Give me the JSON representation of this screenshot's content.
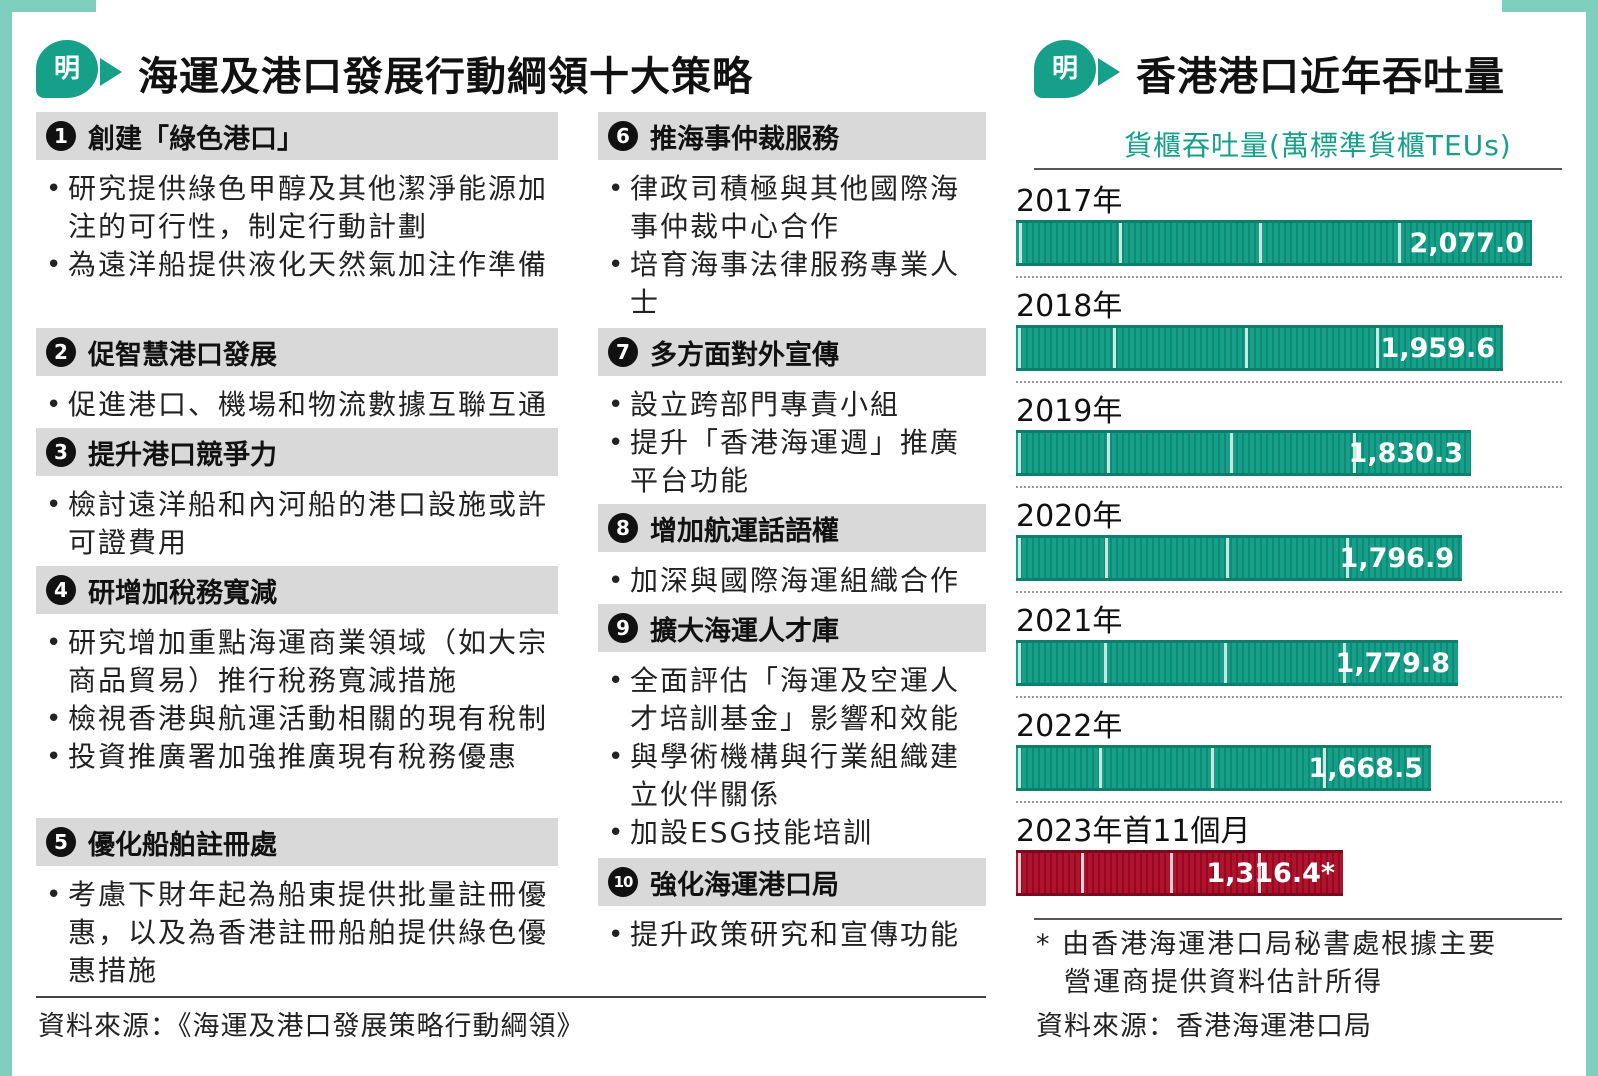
{
  "left_panel": {
    "logo_text": "明",
    "title": "海運及港口發展行動綱領十大策略",
    "strategies": [
      {
        "num": "1",
        "title": "創建「綠色港口」",
        "bullets": [
          "研究提供綠色甲醇及其他潔淨能源加注的可行性，制定行動計劃",
          "為遠洋船提供液化天然氣加注作準備"
        ]
      },
      {
        "num": "2",
        "title": "促智慧港口發展",
        "bullets": [
          "促進港口、機場和物流數據互聯互通"
        ]
      },
      {
        "num": "3",
        "title": "提升港口競爭力",
        "bullets": [
          "檢討遠洋船和內河船的港口設施或許可證費用"
        ]
      },
      {
        "num": "4",
        "title": "研增加稅務寬減",
        "bullets": [
          "研究增加重點海運商業領域（如大宗商品貿易）推行稅務寬減措施",
          "檢視香港與航運活動相關的現有稅制",
          "投資推廣署加強推廣現有稅務優惠"
        ]
      },
      {
        "num": "5",
        "title": "優化船舶註冊處",
        "bullets": [
          "考慮下財年起為船東提供批量註冊優惠，以及為香港註冊船舶提供綠色優惠措施"
        ]
      },
      {
        "num": "6",
        "title": "推海事仲裁服務",
        "bullets": [
          "律政司積極與其他國際海事仲裁中心合作",
          "培育海事法律服務專業人士"
        ]
      },
      {
        "num": "7",
        "title": "多方面對外宣傳",
        "bullets": [
          "設立跨部門專責小組",
          "提升「香港海運週」推廣平台功能"
        ]
      },
      {
        "num": "8",
        "title": "增加航運話語權",
        "bullets": [
          "加深與國際海運組織合作"
        ]
      },
      {
        "num": "9",
        "title": "擴大海運人才庫",
        "bullets": [
          "全面評估「海運及空運人才培訓基金」影響和效能",
          "與學術機構與行業組織建立伙伴關係",
          "加設ESG技能培訓"
        ]
      },
      {
        "num": "10",
        "title": "強化海運港口局",
        "bullets": [
          "提升政策研究和宣傳功能"
        ]
      }
    ],
    "source": "資料來源：《海運及港口發展策略行動綱領》"
  },
  "right_panel": {
    "logo_text": "明",
    "title": "香港港口近年吞吐量",
    "unit_label": "貨櫃吞吐量(萬標準貨櫃TEUs)",
    "footnote_lines": [
      "* 由香港海運港口局秘書處根據主要",
      "營運商提供資料估計所得"
    ],
    "source": "資料來源：香港海運港口局"
  },
  "chart_data": {
    "type": "bar",
    "orientation": "horizontal",
    "title": "香港港口近年吞吐量",
    "unit": "貨櫃吞吐量(萬標準貨櫃TEUs)",
    "categories": [
      "2017年",
      "2018年",
      "2019年",
      "2020年",
      "2021年",
      "2022年",
      "2023年首11個月"
    ],
    "values": [
      2077.0,
      1959.6,
      1830.3,
      1796.9,
      1779.8,
      1668.5,
      1316.4
    ],
    "value_labels": [
      "2,077.0",
      "1,959.6",
      "1,830.3",
      "1,796.9",
      "1,779.8",
      "1,668.5",
      "1,316.4*"
    ],
    "colors": [
      "#16a08a",
      "#16a08a",
      "#16a08a",
      "#16a08a",
      "#16a08a",
      "#16a08a",
      "#b3122f"
    ],
    "xlim": [
      0,
      2077.0
    ],
    "grid": false,
    "legend": "none"
  }
}
